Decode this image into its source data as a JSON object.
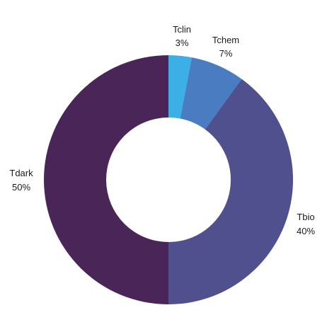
{
  "chart_data": {
    "type": "pie",
    "donut": true,
    "title": "",
    "legend": "none",
    "slices": [
      {
        "name": "Tclin",
        "value": 3,
        "label": "3%",
        "color": "#3CAFE6"
      },
      {
        "name": "Tchem",
        "value": 7,
        "label": "7%",
        "color": "#4A7CC2"
      },
      {
        "name": "Tbio",
        "value": 40,
        "label": "40%",
        "color": "#51508E"
      },
      {
        "name": "Tdark",
        "value": 50,
        "label": "50%",
        "color": "#4A2558"
      }
    ]
  }
}
